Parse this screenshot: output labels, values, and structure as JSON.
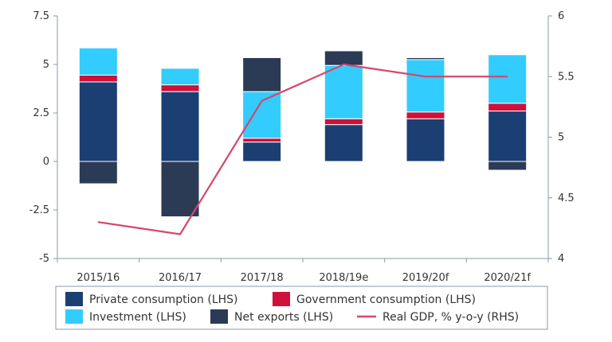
{
  "chart_data": {
    "type": "bar",
    "subtype": "stacked-bar-with-line",
    "categories": [
      "2015/16",
      "2016/17",
      "2017/18",
      "2018/19e",
      "2019/20f",
      "2020/21f"
    ],
    "series": [
      {
        "name": "Private consumption (LHS)",
        "axis": "left",
        "color": "#1b3f73",
        "values": [
          4.1,
          3.6,
          1.0,
          1.9,
          2.2,
          2.6
        ]
      },
      {
        "name": "Government consumption (LHS)",
        "axis": "left",
        "color": "#d0103a",
        "values": [
          0.35,
          0.35,
          0.2,
          0.3,
          0.35,
          0.4
        ]
      },
      {
        "name": "Investment (LHS)",
        "axis": "left",
        "color": "#33ccff",
        "values": [
          1.4,
          0.85,
          2.4,
          2.75,
          2.7,
          2.5
        ]
      },
      {
        "name": "Net exports (LHS)",
        "axis": "left",
        "color": "#2b3a55",
        "values": [
          -1.15,
          -2.85,
          1.75,
          0.75,
          0.1,
          -0.45
        ]
      },
      {
        "name": "Real GDP, % y-o-y (RHS)",
        "axis": "right",
        "type": "line",
        "color": "#d6476b",
        "values": [
          4.3,
          4.2,
          5.3,
          5.6,
          5.5,
          5.5
        ]
      }
    ],
    "left_axis": {
      "ylim": [
        -5,
        7.5
      ],
      "ticks": [
        -5,
        -2.5,
        0,
        2.5,
        5,
        7.5
      ],
      "tick_labels": [
        "-5",
        "-2.5",
        "0",
        "2.5",
        "5",
        "7.5"
      ]
    },
    "right_axis": {
      "ylim": [
        4,
        6
      ],
      "ticks": [
        4,
        4.5,
        5,
        5.5,
        6
      ],
      "tick_labels": [
        "4",
        "4.5",
        "5",
        "5.5",
        "6"
      ]
    },
    "grid": false,
    "legend_position": "bottom"
  }
}
